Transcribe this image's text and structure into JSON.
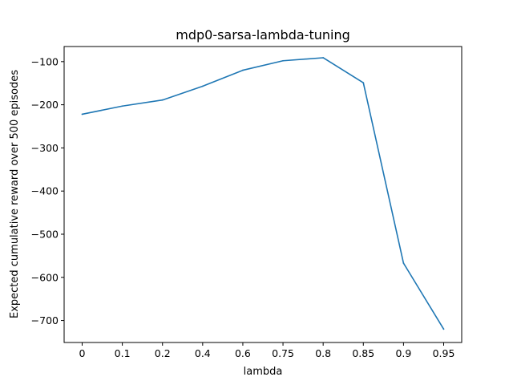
{
  "chart_data": {
    "type": "line",
    "title": "mdp0-sarsa-lambda-tuning",
    "xlabel": "lambda",
    "ylabel": "Expected cumulative reward over 500 episodes",
    "categories": [
      "0",
      "0.1",
      "0.2",
      "0.4",
      "0.6",
      "0.75",
      "0.8",
      "0.85",
      "0.9",
      "0.95"
    ],
    "series": [
      {
        "values": [
          -222,
          -203,
          -189,
          -157,
          -120,
          -98,
          -91,
          -149,
          -567,
          -720
        ],
        "color": "#1f77b4"
      }
    ],
    "ylim": [
      -751,
      -65
    ],
    "yticks": [
      -100,
      -200,
      -300,
      -400,
      -500,
      -600,
      -700
    ],
    "grid": false,
    "legend": "none"
  }
}
